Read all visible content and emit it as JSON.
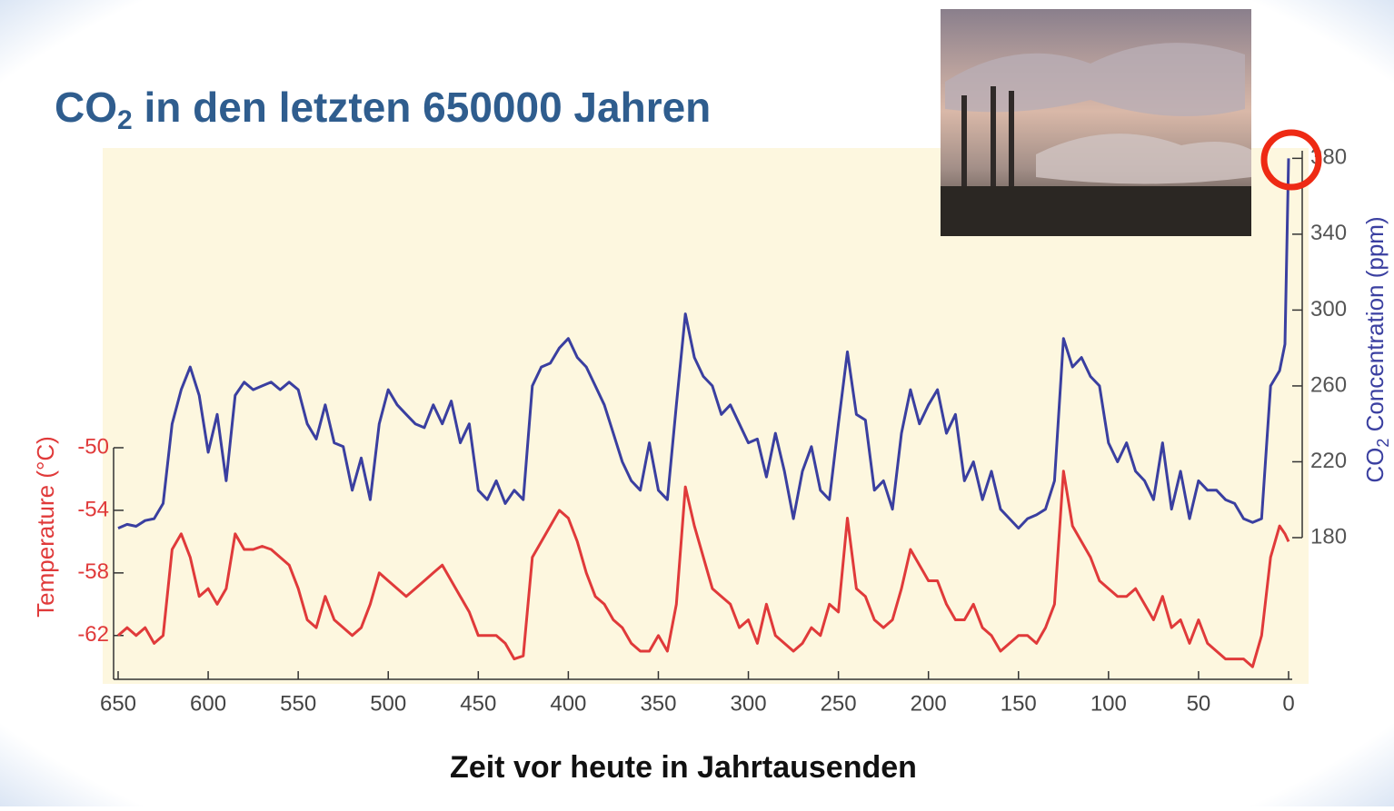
{
  "chart_data": {
    "type": "line",
    "title_parts": [
      "CO",
      "2",
      " in den letzten 650000 Jahren"
    ],
    "xlabel": "Zeit vor heute in Jahrtausenden",
    "ylabel": "Temperature (°C)",
    "y2label_parts": [
      "CO",
      "2",
      " Concentration (ppm)"
    ],
    "x": [
      650,
      645,
      640,
      635,
      630,
      625,
      620,
      615,
      610,
      605,
      600,
      595,
      590,
      585,
      580,
      575,
      570,
      565,
      560,
      555,
      550,
      545,
      540,
      535,
      530,
      525,
      520,
      515,
      510,
      505,
      500,
      495,
      490,
      485,
      480,
      475,
      470,
      465,
      460,
      455,
      450,
      445,
      440,
      435,
      430,
      425,
      420,
      415,
      410,
      405,
      400,
      395,
      390,
      385,
      380,
      375,
      370,
      365,
      360,
      355,
      350,
      345,
      340,
      335,
      330,
      325,
      320,
      315,
      310,
      305,
      300,
      295,
      290,
      285,
      280,
      275,
      270,
      265,
      260,
      255,
      250,
      245,
      240,
      235,
      230,
      225,
      220,
      215,
      210,
      205,
      200,
      195,
      190,
      185,
      180,
      175,
      170,
      165,
      160,
      155,
      150,
      145,
      140,
      135,
      130,
      125,
      120,
      115,
      110,
      105,
      100,
      95,
      90,
      85,
      80,
      75,
      70,
      65,
      60,
      55,
      50,
      45,
      40,
      35,
      30,
      25,
      20,
      15,
      10,
      5,
      2,
      0
    ],
    "xlim": [
      650,
      0
    ],
    "xticks": [
      650,
      600,
      550,
      500,
      450,
      400,
      350,
      300,
      250,
      200,
      150,
      100,
      50,
      0
    ],
    "ylim": [
      -64.8,
      -50
    ],
    "yticks": [
      -50,
      -54,
      -58,
      -62
    ],
    "y2lim": [
      180,
      384
    ],
    "y2ticks": [
      180,
      220,
      260,
      300,
      340,
      380
    ],
    "series": [
      {
        "color": "#e03a3a",
        "axis": "y",
        "values": [
          -62,
          -61.5,
          -62,
          -61.5,
          -62.5,
          -62,
          -56.5,
          -55.5,
          -57,
          -59.5,
          -59,
          -60,
          -59,
          -55.5,
          -56.5,
          -56.5,
          -56.3,
          -56.5,
          -57,
          -57.5,
          -59,
          -61,
          -61.5,
          -59.5,
          -61,
          -61.5,
          -62,
          -61.5,
          -60,
          -58,
          -58.5,
          -59,
          -59.5,
          -59,
          -58.5,
          -58,
          -57.5,
          -58.5,
          -59.5,
          -60.5,
          -62,
          -62,
          -62,
          -62.5,
          -63.5,
          -63.3,
          -57,
          -56,
          -55,
          -54,
          -54.5,
          -56,
          -58,
          -59.5,
          -60,
          -61,
          -61.5,
          -62.5,
          -63,
          -63,
          -62,
          -63,
          -60,
          -52.5,
          -55,
          -57,
          -59,
          -59.5,
          -60,
          -61.5,
          -61,
          -62.5,
          -60,
          -62,
          -62.5,
          -63,
          -62.5,
          -61.5,
          -62,
          -60,
          -60.5,
          -54.5,
          -59,
          -59.5,
          -61,
          -61.5,
          -61,
          -59,
          -56.5,
          -57.5,
          -58.5,
          -58.5,
          -60,
          -61,
          -61,
          -60,
          -61.5,
          -62,
          -63,
          -62.5,
          -62,
          -62,
          -62.5,
          -61.5,
          -60,
          -51.5,
          -55,
          -56,
          -57,
          -58.5,
          -59,
          -59.5,
          -59.5,
          -59,
          -60,
          -61,
          -59.5,
          -61.5,
          -61,
          -62.5,
          -61,
          -62.5,
          -63,
          -63.5,
          -63.5,
          -63.5,
          -64,
          -62,
          -57,
          -55,
          -55.5,
          -56
        ]
      },
      {
        "color": "#3a3fa0",
        "axis": "y2",
        "values": [
          185,
          187,
          186,
          189,
          190,
          198,
          240,
          258,
          270,
          255,
          225,
          245,
          210,
          255,
          262,
          258,
          260,
          262,
          258,
          262,
          258,
          240,
          232,
          250,
          230,
          228,
          205,
          222,
          200,
          240,
          258,
          250,
          245,
          240,
          238,
          250,
          240,
          252,
          230,
          240,
          205,
          200,
          210,
          198,
          205,
          200,
          260,
          270,
          272,
          280,
          285,
          275,
          270,
          260,
          250,
          235,
          220,
          210,
          205,
          230,
          205,
          200,
          250,
          298,
          275,
          265,
          260,
          245,
          250,
          240,
          230,
          232,
          212,
          235,
          215,
          190,
          215,
          228,
          205,
          200,
          240,
          278,
          245,
          242,
          205,
          210,
          195,
          235,
          258,
          240,
          250,
          258,
          235,
          245,
          210,
          220,
          200,
          215,
          195,
          190,
          185,
          190,
          192,
          195,
          210,
          285,
          270,
          275,
          265,
          260,
          230,
          220,
          230,
          215,
          210,
          200,
          230,
          195,
          215,
          190,
          210,
          205,
          205,
          200,
          198,
          190,
          188,
          190,
          260,
          268,
          282,
          380
        ]
      }
    ]
  }
}
